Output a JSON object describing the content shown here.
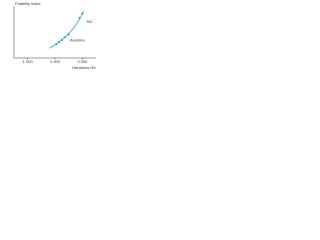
{
  "chart_data": {
    "type": "scatter",
    "y_label": "Friability index",
    "x_label": "Hardness HK",
    "x": [
      2050,
      2150,
      2250,
      2350,
      2500,
      2900,
      3000
    ],
    "values": [
      20,
      23,
      26,
      30,
      34,
      58,
      64
    ],
    "color": "#1a9ad6",
    "curve": {
      "x": [
        1800,
        2100,
        2400,
        2700,
        2900,
        3050
      ],
      "y": [
        14,
        22,
        31,
        44,
        56,
        68
      ],
      "color": "#1a9ad6"
    },
    "annotations": [
      {
        "text": "Alumina",
        "x": 2550,
        "y": 25
      },
      {
        "text": "SiC",
        "x": 3150,
        "y": 52
      }
    ],
    "xlim": [
      500,
      3500
    ],
    "ylim": [
      0,
      75
    ],
    "xticks": [
      {
        "value": 1000,
        "label": "1 000"
      },
      {
        "value": 2000,
        "label": "2 000"
      },
      {
        "value": 3000,
        "label": "3 000"
      }
    ]
  }
}
